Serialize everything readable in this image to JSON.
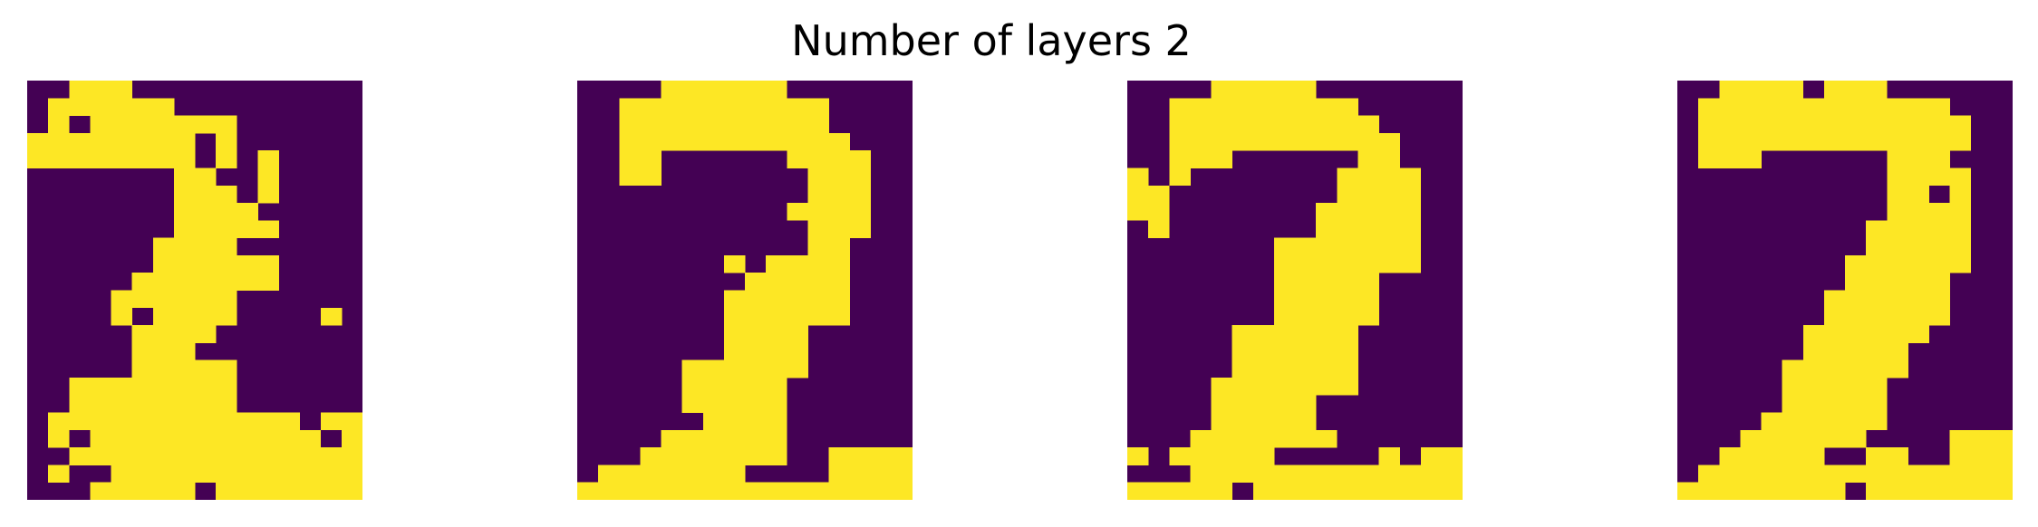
{
  "chart_data": {
    "type": "heatmap",
    "title": "Number of layers 2",
    "grid": false,
    "colors": {
      "off": "#440154",
      "on": "#fde725",
      "background": "#ffffff"
    },
    "panels": [
      {
        "rows": [
          "0011100000000000",
          "0111111000000000",
          "0101111111000000",
          "1111111101000000",
          "1111111101010000",
          "0000000110010000",
          "0000000111010000",
          "0000000111100000",
          "0000000111110000",
          "0000001111000000",
          "0000001111110000",
          "0000011111110000",
          "0000111111000000",
          "0000101111000010",
          "0000011110000000",
          "0000011100000000",
          "0000011111000000",
          "0011111111000000",
          "0011111111000000",
          "0111111111111011",
          "0101111111111101",
          "0011111111111111",
          "0100111111111111",
          "0001111101111111"
        ]
      },
      {
        "rows": [
          "0000111111000000",
          "0011111111110000",
          "0011111111110000",
          "0011111111111000",
          "0011000000111100",
          "0011000000011100",
          "0000000000011100",
          "0000000000111100",
          "0000000000011100",
          "0000000000011000",
          "0000000101111000",
          "0000000011111000",
          "0000000111111000",
          "0000000111111000",
          "0000000111100000",
          "0000000111100000",
          "0000011111100000",
          "0000011111000000",
          "0000011111000000",
          "0000001111000000",
          "0000111111000000",
          "0001111111001111",
          "0111111100001111",
          "1111111111111111"
        ]
      },
      {
        "rows": [
          "0000111110000000",
          "0011111111100000",
          "0011111111110000",
          "0011111111111000",
          "0011100000011000",
          "1010000000111100",
          "1100000000111100",
          "1100000001111100",
          "0100000001111100",
          "0000000111111100",
          "0000000111111100",
          "0000000111110000",
          "0000000111110000",
          "0000000111110000",
          "0000011111100000",
          "0000011111100000",
          "0000011111100000",
          "0000111111100000",
          "0000111110000000",
          "0000111110000000",
          "0001111111000000",
          "1011111000001011",
          "0001111111111111",
          "1111101111111111"
        ]
      },
      {
        "rows": [
          "0011110111000000",
          "0111111111111000",
          "0111111111111100",
          "0111111111111100",
          "0111000000111000",
          "0000000000111100",
          "0000000000110100",
          "0000000000111100",
          "0000000001111100",
          "0000000001111100",
          "0000000011111100",
          "0000000011111000",
          "0000000111111000",
          "0000000111111000",
          "0000001111110000",
          "0000001111100000",
          "0000011111100000",
          "0000011111000000",
          "0000011111000000",
          "0000111111000000",
          "0001111110000111",
          "0011111001100111",
          "0111111111111111",
          "1111111101111111"
        ]
      }
    ]
  }
}
